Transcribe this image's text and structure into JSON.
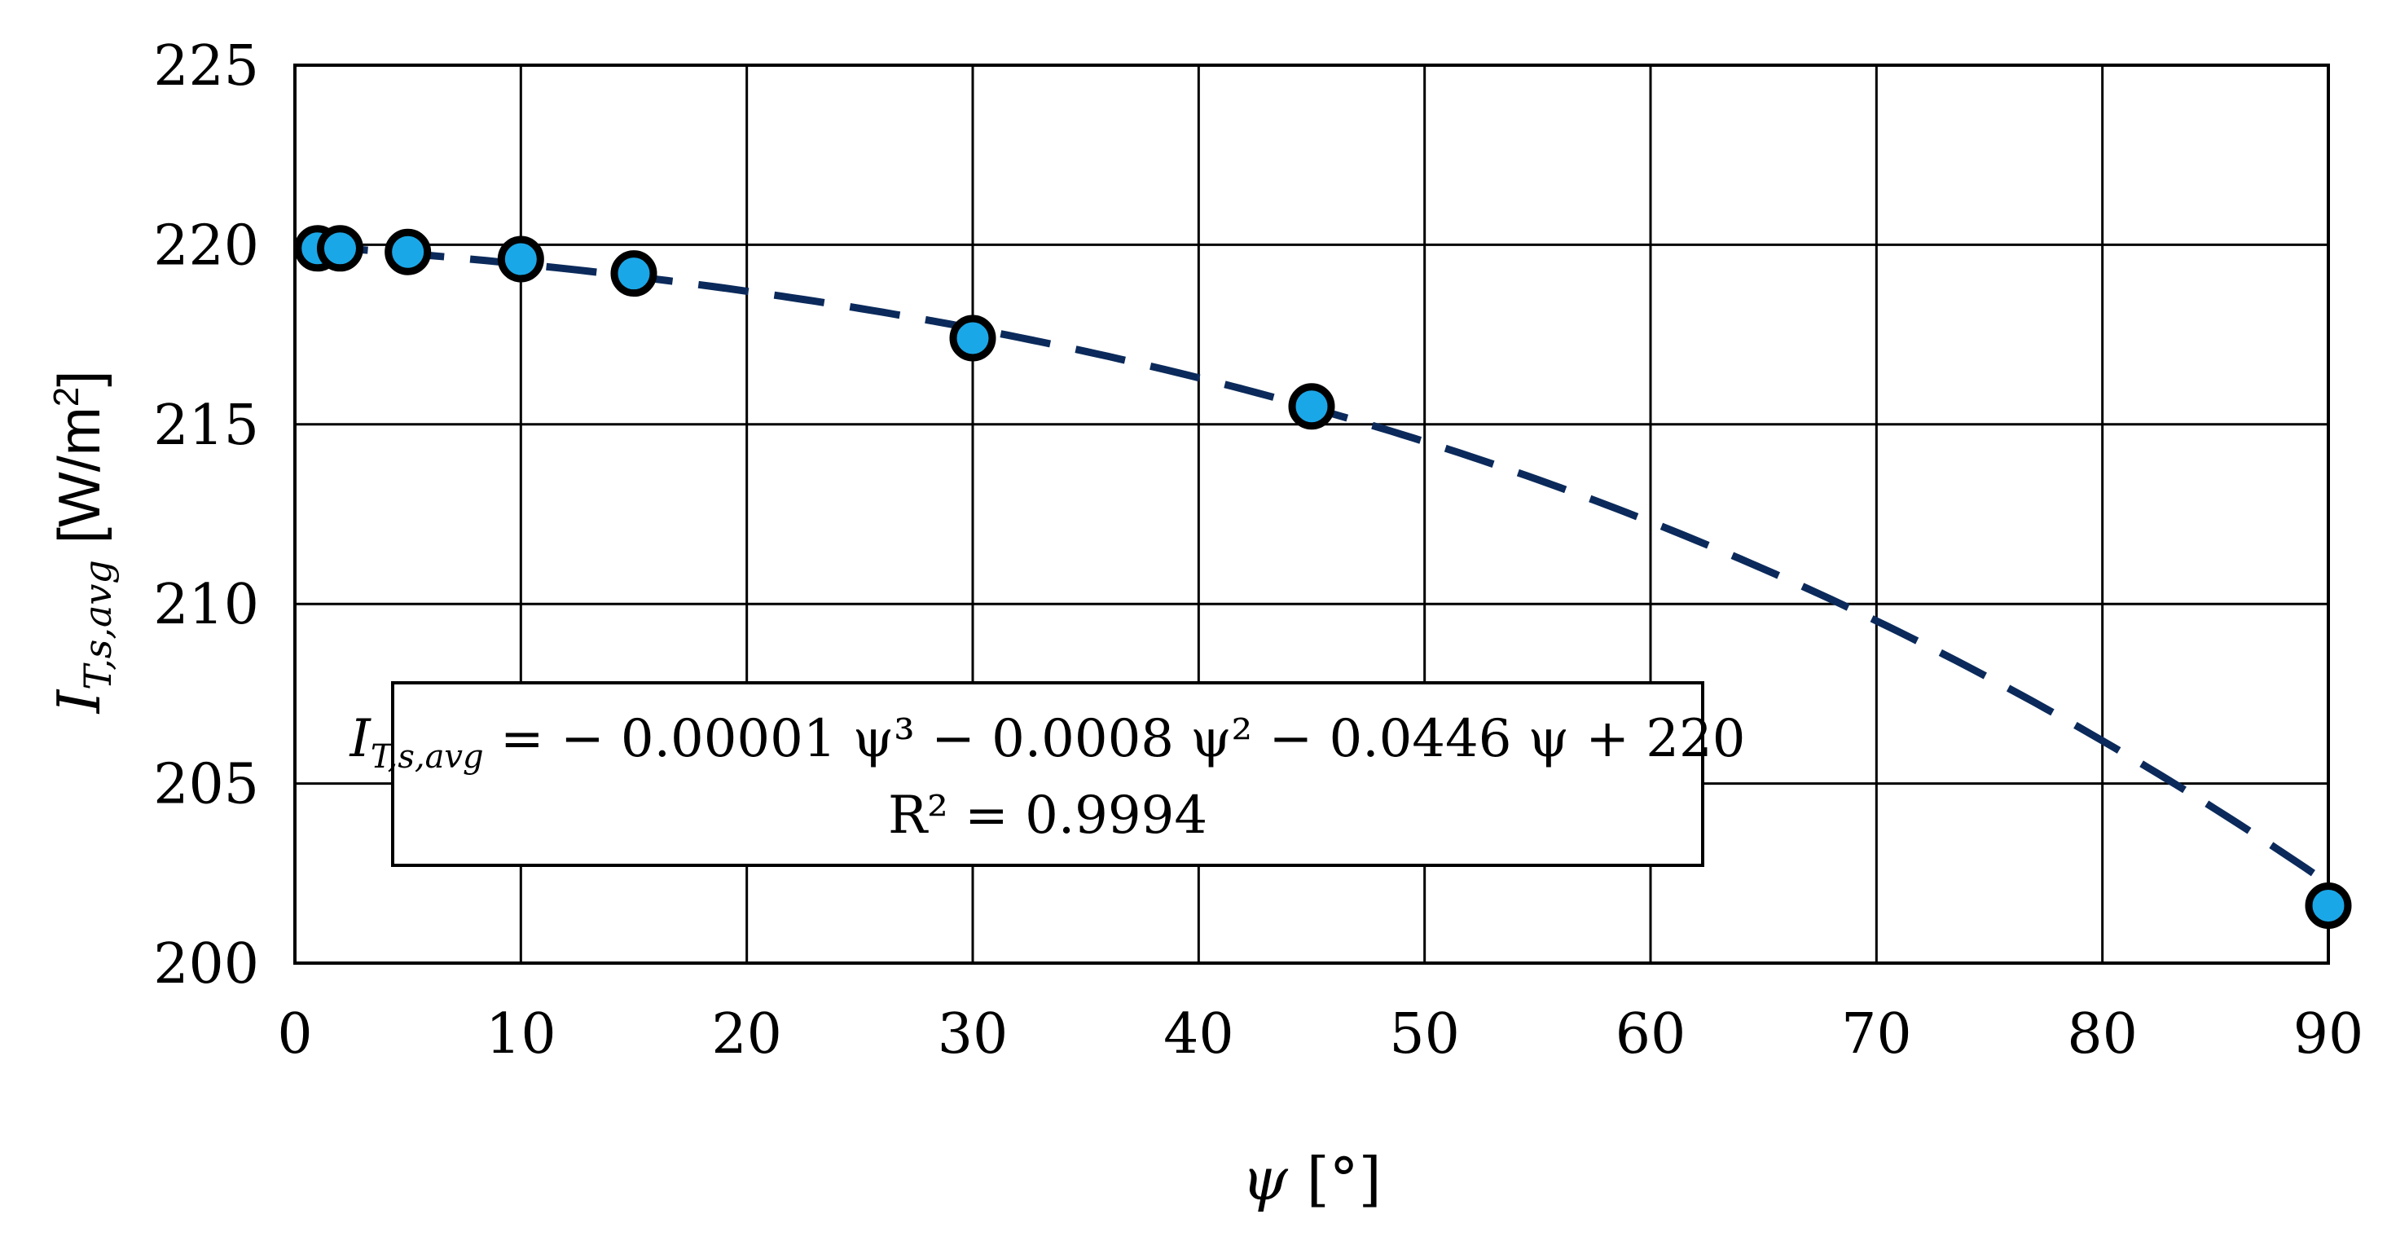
{
  "chart_data": {
    "type": "scatter",
    "x_ticks": [
      0,
      10,
      20,
      30,
      40,
      50,
      60,
      70,
      80,
      90
    ],
    "y_ticks": [
      200,
      205,
      210,
      215,
      220,
      225
    ],
    "xlim": [
      0,
      90
    ],
    "ylim": [
      200,
      225
    ],
    "grid": true,
    "xlabel": {
      "symbol": "ψ",
      "unit": " [°]"
    },
    "ylabel": {
      "symbol": "I",
      "sub": "T,s,avg",
      "unit": " [W/m",
      "sup": "2",
      "close": "]"
    },
    "points": [
      {
        "x": 1,
        "y": 219.9
      },
      {
        "x": 2,
        "y": 219.9
      },
      {
        "x": 5,
        "y": 219.8
      },
      {
        "x": 10,
        "y": 219.6
      },
      {
        "x": 15,
        "y": 219.2
      },
      {
        "x": 30,
        "y": 217.4
      },
      {
        "x": 45,
        "y": 215.5
      },
      {
        "x": 90,
        "y": 201.6
      }
    ],
    "trendline": {
      "type": "polynomial",
      "order": 3,
      "coefficients": [
        220,
        -0.0446,
        -0.0008,
        -1e-05
      ],
      "style": "dashed"
    },
    "annotation": {
      "lhs_symbol": "I",
      "lhs_sub": "T,s,avg",
      "rhs": " = − 0.00001 ψ³ − 0.0008 ψ² − 0.0446 ψ + 220",
      "r2": "R² = 0.9994"
    },
    "colors": {
      "marker_fill": "#1aa7e8",
      "marker_edge": "#000000",
      "trendline": "#0b2a5b",
      "grid": "#000000"
    }
  }
}
